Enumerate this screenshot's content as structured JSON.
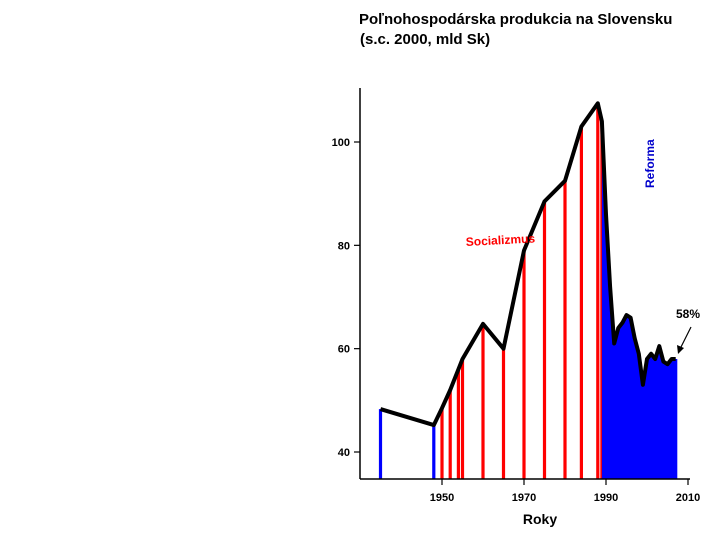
{
  "chart_data": {
    "type": "bar",
    "title_line1": "Poľnohospodárska produkcia na Slovensku",
    "title_line2": "(s.c. 2000, mld Sk)",
    "xlabel": "Roky",
    "ylabel": "",
    "xlim": [
      1930,
      2010
    ],
    "ylim": [
      38,
      110
    ],
    "yticks": [
      40,
      60,
      80,
      100
    ],
    "xticks": [
      1950,
      1970,
      1990,
      2010
    ],
    "x": [
      1935,
      1948,
      1950,
      1952,
      1954,
      1955,
      1960,
      1965,
      1970,
      1975,
      1980,
      1984,
      1988,
      1989,
      1990,
      1991,
      1992,
      1993,
      1994,
      1995,
      1996,
      1997,
      1998,
      1999,
      2000,
      2001,
      2002,
      2003,
      2004,
      2005,
      2006,
      2007
    ],
    "values": [
      48.3,
      45.2,
      48.5,
      52,
      56,
      58,
      64.8,
      60,
      79,
      88.5,
      92.5,
      103,
      107.5,
      104,
      86,
      72,
      61,
      64,
      65,
      66.5,
      66,
      62,
      59,
      53,
      58,
      59,
      58,
      60.5,
      57.5,
      57,
      58,
      58
    ],
    "series_colors": {
      "socialism": "#ff0000",
      "other": "#0000ff",
      "line": "#000000"
    },
    "bar_color_by_x": [
      "#0000ff",
      "#0000ff",
      "#ff0000",
      "#ff0000",
      "#ff0000",
      "#ff0000",
      "#ff0000",
      "#ff0000",
      "#ff0000",
      "#ff0000",
      "#ff0000",
      "#ff0000",
      "#ff0000",
      "#ff0000",
      "#0000ff",
      "#0000ff",
      "#0000ff",
      "#0000ff",
      "#0000ff",
      "#0000ff",
      "#0000ff",
      "#0000ff",
      "#0000ff",
      "#0000ff",
      "#0000ff",
      "#0000ff",
      "#0000ff",
      "#0000ff",
      "#0000ff",
      "#0000ff",
      "#0000ff",
      "#0000ff"
    ],
    "annotations": {
      "socialism_label": "Socializmus",
      "other_label": "Reforma",
      "percent_label": "58%"
    }
  }
}
